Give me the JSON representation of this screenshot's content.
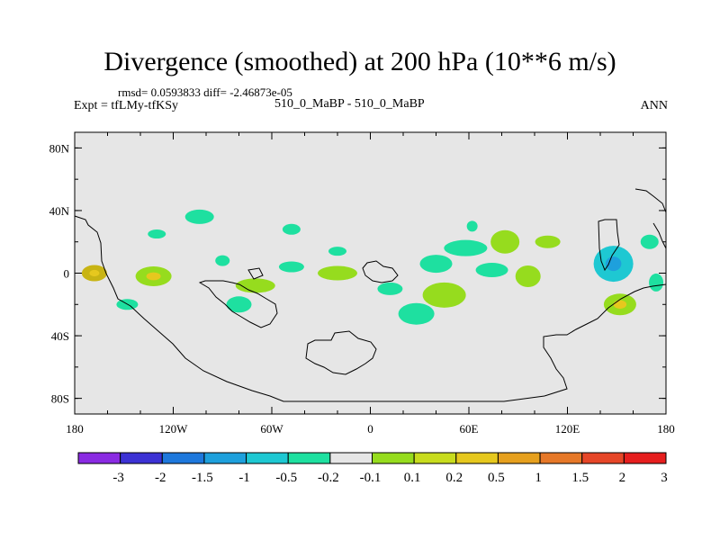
{
  "title": "Divergence (smoothed) at 200 hPa (10**6 m/s)",
  "stats_line": "rmsd= 0.0593833 diff= -2.46873e-05",
  "expt_label": "Expt = tfLMy-tfKSy",
  "case_label": "510_0_MaBP - 510_0_MaBP",
  "season_label": "ANN",
  "chart_data": {
    "type": "heatmap",
    "title": "Divergence (smoothed) at 200 hPa (10**6 m/s)",
    "projection": "cylindrical-equidistant",
    "xlim": [
      -180,
      180
    ],
    "ylim": [
      -90,
      90
    ],
    "x_ticks": [
      {
        "value": -180,
        "label": "180"
      },
      {
        "value": -120,
        "label": "120W"
      },
      {
        "value": -60,
        "label": "60W"
      },
      {
        "value": 0,
        "label": "0"
      },
      {
        "value": 60,
        "label": "60E"
      },
      {
        "value": 120,
        "label": "120E"
      },
      {
        "value": 180,
        "label": "180"
      }
    ],
    "y_ticks": [
      {
        "value": 80,
        "label": "80N"
      },
      {
        "value": 40,
        "label": "40N"
      },
      {
        "value": 0,
        "label": "0"
      },
      {
        "value": -40,
        "label": "40S"
      },
      {
        "value": -80,
        "label": "80S"
      }
    ],
    "colorbar": {
      "colors": [
        "#8a2be2",
        "#3c32d4",
        "#1e78dc",
        "#1ea0dc",
        "#1ec8d2",
        "#1ee0a0",
        "#e6e6e6",
        "#96dc1e",
        "#c8dc1e",
        "#e6c81e",
        "#e6a01e",
        "#e67828",
        "#e64628",
        "#e61e1e"
      ],
      "labels": [
        "-3",
        "-2",
        "-1.5",
        "-1",
        "-0.5",
        "-0.2",
        "-0.1",
        "0.1",
        "0.2",
        "0.5",
        "1",
        "1.5",
        "2",
        "3"
      ]
    },
    "anomalies": [
      {
        "lon": -168,
        "lat": 0,
        "level": "0.5",
        "color": "#c8b414",
        "core": true
      },
      {
        "lon": -132,
        "lat": -2,
        "level": "0.2",
        "color": "#96dc1e",
        "core": true
      },
      {
        "lon": -104,
        "lat": 36,
        "level": "-0.2",
        "color": "#1ee0a0"
      },
      {
        "lon": -130,
        "lat": 25,
        "level": "-0.2",
        "color": "#1ee0a0"
      },
      {
        "lon": -148,
        "lat": -20,
        "level": "-0.2",
        "color": "#1ee0a0"
      },
      {
        "lon": -90,
        "lat": 8,
        "level": "-0.2",
        "color": "#1ee0a0"
      },
      {
        "lon": -70,
        "lat": -8,
        "level": "0.2",
        "color": "#96dc1e"
      },
      {
        "lon": -80,
        "lat": -20,
        "level": "-0.2",
        "color": "#1ee0a0"
      },
      {
        "lon": -48,
        "lat": 28,
        "level": "-0.2",
        "color": "#1ee0a0"
      },
      {
        "lon": -48,
        "lat": 4,
        "level": "-0.2",
        "color": "#1ee0a0"
      },
      {
        "lon": -20,
        "lat": 14,
        "level": "-0.2",
        "color": "#1ee0a0"
      },
      {
        "lon": -20,
        "lat": 0,
        "level": "0.2",
        "color": "#96dc1e"
      },
      {
        "lon": 12,
        "lat": -10,
        "level": "-0.2",
        "color": "#1ee0a0"
      },
      {
        "lon": 28,
        "lat": -26,
        "level": "-0.2",
        "color": "#1ee0a0"
      },
      {
        "lon": 40,
        "lat": 6,
        "level": "-0.2",
        "color": "#1ee0a0"
      },
      {
        "lon": 45,
        "lat": -14,
        "level": "0.2",
        "color": "#96dc1e"
      },
      {
        "lon": 58,
        "lat": 16,
        "level": "-0.2",
        "color": "#1ee0a0"
      },
      {
        "lon": 82,
        "lat": 20,
        "level": "0.2",
        "color": "#96dc1e"
      },
      {
        "lon": 74,
        "lat": 2,
        "level": "-0.2",
        "color": "#1ee0a0"
      },
      {
        "lon": 96,
        "lat": -2,
        "level": "0.2",
        "color": "#96dc1e"
      },
      {
        "lon": 108,
        "lat": 20,
        "level": "0.2",
        "color": "#96dc1e"
      },
      {
        "lon": 148,
        "lat": 6,
        "level": "-0.5",
        "color": "#1ec8d2",
        "core": true
      },
      {
        "lon": 152,
        "lat": -20,
        "level": "0.2",
        "color": "#96dc1e",
        "core": true
      },
      {
        "lon": 174,
        "lat": -6,
        "level": "-0.2",
        "color": "#1ee0a0"
      },
      {
        "lon": 170,
        "lat": 20,
        "level": "-0.2",
        "color": "#1ee0a0"
      },
      {
        "lon": 62,
        "lat": 30,
        "level": "-0.2",
        "color": "#1ee0a0"
      }
    ]
  }
}
